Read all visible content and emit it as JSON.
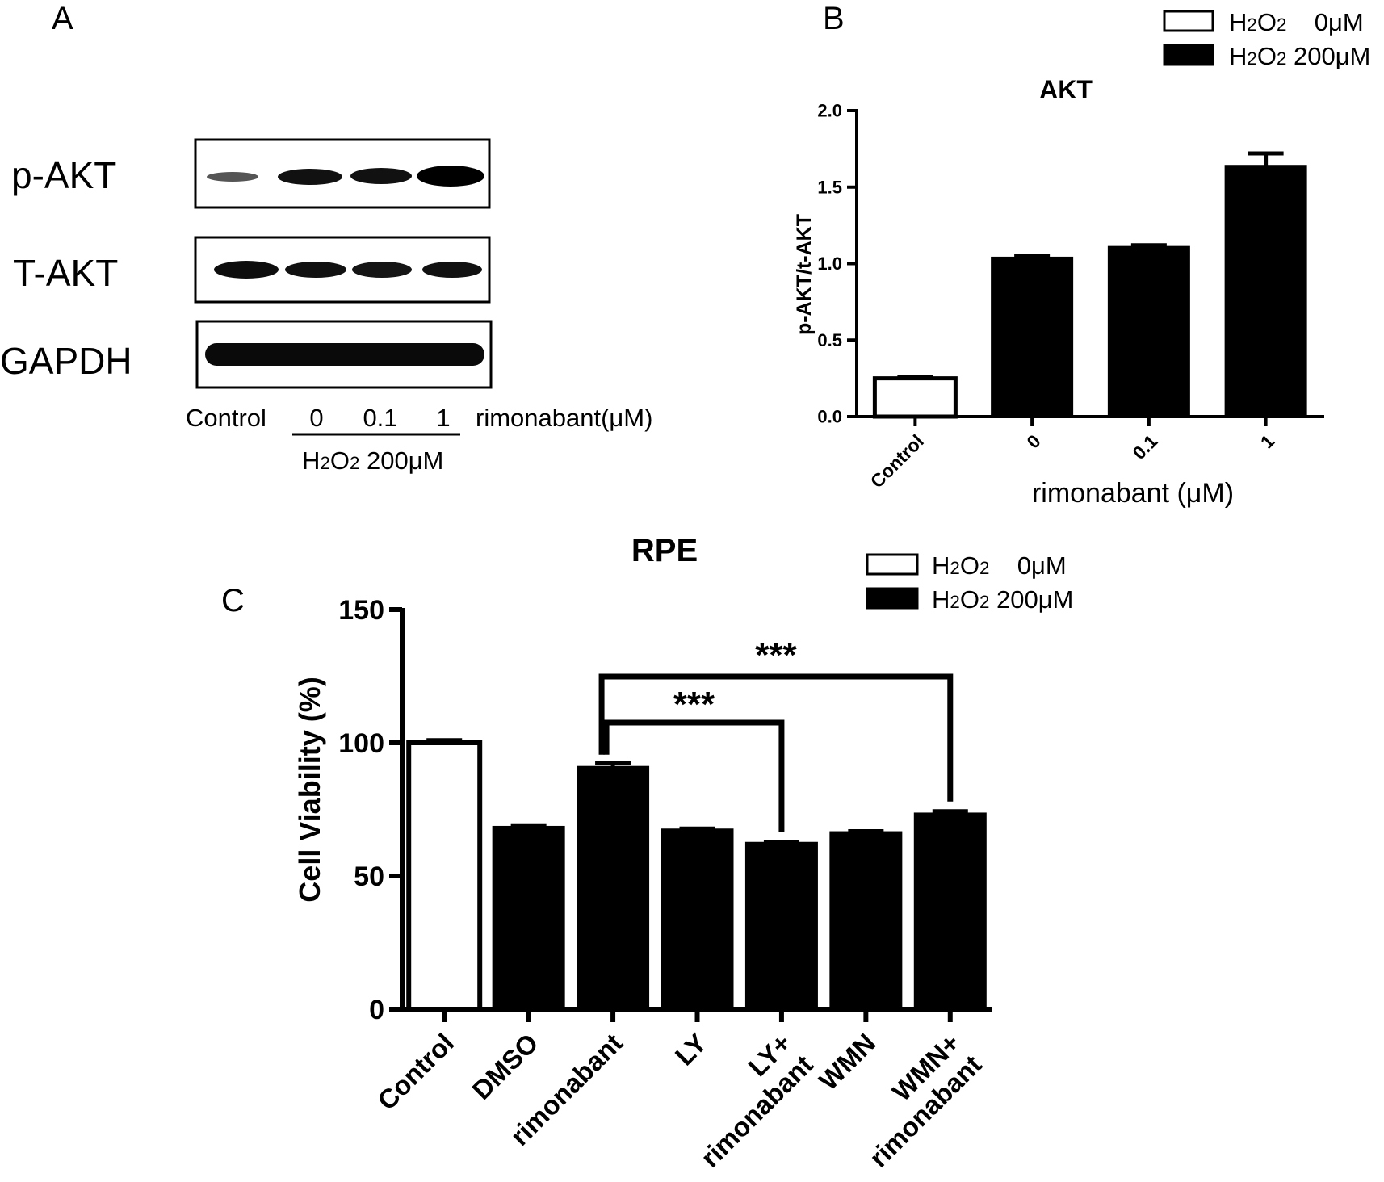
{
  "panel_a": {
    "label": "A",
    "blot_rows": [
      "p-AKT",
      "T-AKT",
      "GAPDH"
    ],
    "lanes": [
      "Control",
      "0",
      "0.1",
      "1"
    ],
    "lane_axis_label": "rimonabant(μM)",
    "treatment_label": "H2O2 200μM",
    "treatment_parts": [
      "H",
      "2",
      "O",
      "2",
      " 200μM"
    ]
  },
  "panel_b_label": "B",
  "panel_c_label": "C",
  "legend_b": {
    "entries": [
      {
        "name": "H2O2 0μM",
        "parts": [
          "H",
          "2",
          "O",
          "2",
          "    0μM"
        ],
        "fill": "#ffffff"
      },
      {
        "name": "H2O2 200μM",
        "parts": [
          "H",
          "2",
          "O",
          "2",
          " 200μM"
        ],
        "fill": "#000000"
      }
    ]
  },
  "legend_c": {
    "entries": [
      {
        "name": "H2O2 0μM",
        "parts": [
          "H",
          "2",
          "O",
          "2",
          "    0μM"
        ],
        "fill": "#ffffff"
      },
      {
        "name": "H2O2 200μM",
        "parts": [
          "H",
          "2",
          "O",
          "2",
          " 200μM"
        ],
        "fill": "#000000"
      }
    ]
  },
  "chart_data": [
    {
      "type": "bar",
      "title": "AKT",
      "xlabel": "rimonabant (μM)",
      "ylabel": "p-AKT/t-AKT",
      "categories": [
        "Control",
        "0",
        "0.1",
        "1"
      ],
      "values": [
        0.25,
        1.04,
        1.11,
        1.64
      ],
      "errors": [
        0.01,
        0.01,
        0.01,
        0.08
      ],
      "fills": [
        "#ffffff",
        "#000000",
        "#000000",
        "#000000"
      ],
      "yticks": [
        "0.0",
        "0.5",
        "1.0",
        "1.5",
        "2.0"
      ],
      "ylim": [
        0,
        2.0
      ],
      "grid": false,
      "legend": "top-right"
    },
    {
      "type": "bar",
      "title": "RPE",
      "xlabel": "",
      "ylabel": "Cell Viability (%)",
      "categories": [
        "Control",
        "DMSO",
        "rimonabant",
        "LY",
        "LY+\nrimonabant",
        "WMN",
        "WMN+\nrimonabant"
      ],
      "values": [
        100,
        68.5,
        91,
        67.5,
        62.5,
        66.5,
        73.5
      ],
      "errors": [
        1,
        0.5,
        1.5,
        0.3,
        0.3,
        0.3,
        0.8
      ],
      "fills": [
        "#ffffff",
        "#000000",
        "#000000",
        "#000000",
        "#000000",
        "#000000",
        "#000000"
      ],
      "yticks": [
        "0",
        "50",
        "100",
        "150"
      ],
      "ylim": [
        0,
        150
      ],
      "grid": false,
      "legend": "top-right",
      "annotations": [
        {
          "text": "***",
          "from": "rimonabant",
          "to": "LY+\nrimonabant"
        },
        {
          "text": "***",
          "from": "rimonabant",
          "to": "WMN+\nrimonabant"
        }
      ]
    }
  ]
}
